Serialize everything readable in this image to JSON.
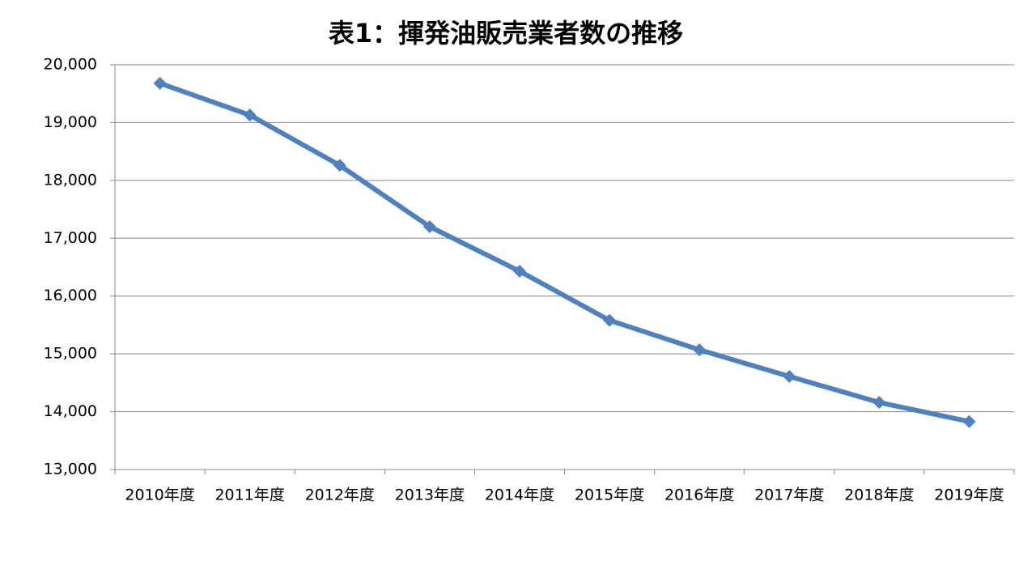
{
  "chart_data": {
    "type": "line",
    "title": "表1：揮発油販売業者数の推移",
    "categories": [
      "2010年度",
      "2011年度",
      "2012年度",
      "2013年度",
      "2014年度",
      "2015年度",
      "2016年度",
      "2017年度",
      "2018年度",
      "2019年度"
    ],
    "series": [
      {
        "name": "揮発油販売業者数",
        "color": "#4f81bd",
        "values": [
          19680,
          19130,
          18260,
          17200,
          16430,
          15580,
          15070,
          14610,
          14160,
          13830
        ]
      }
    ],
    "ylim": [
      13000,
      20000
    ],
    "yticks": [
      {
        "value": 13000,
        "label": "13,000"
      },
      {
        "value": 14000,
        "label": "14,000"
      },
      {
        "value": 15000,
        "label": "15,000"
      },
      {
        "value": 16000,
        "label": "16,000"
      },
      {
        "value": 17000,
        "label": "17,000"
      },
      {
        "value": 18000,
        "label": "18,000"
      },
      {
        "value": 19000,
        "label": "19,000"
      },
      {
        "value": 20000,
        "label": "20,000"
      }
    ],
    "grid": true
  }
}
